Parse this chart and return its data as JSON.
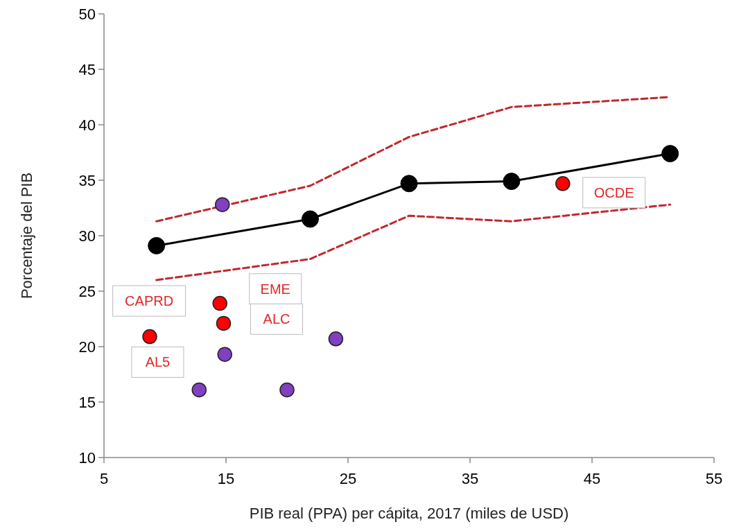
{
  "chart_data": {
    "type": "scatter",
    "xlabel": "PIB real (PPA) per cápita, 2017 (miles de USD)",
    "ylabel": "Porcentaje del PIB",
    "xlim": [
      5,
      55
    ],
    "xticks": [
      5,
      15,
      25,
      35,
      45,
      55
    ],
    "ylim": [
      10,
      50
    ],
    "yticks": [
      10,
      15,
      20,
      25,
      30,
      35,
      40,
      45,
      50
    ],
    "grid": false,
    "series": [
      {
        "type": "line",
        "color": "#c0282d",
        "line_style": "dashed",
        "marker": "none",
        "x": [
          9.3,
          21.9,
          30.0,
          38.4,
          51.4
        ],
        "values": [
          31.3,
          34.5,
          38.9,
          41.6,
          42.5
        ]
      },
      {
        "type": "line",
        "color": "#c0282d",
        "line_style": "dashed",
        "marker": "none",
        "x": [
          9.3,
          21.9,
          30.0,
          38.4,
          51.4
        ],
        "values": [
          26.0,
          27.9,
          31.8,
          31.3,
          32.8
        ]
      },
      {
        "type": "line",
        "color": "#000000",
        "line_style": "solid",
        "marker": "circle",
        "x": [
          9.3,
          21.9,
          30.0,
          38.4,
          51.4
        ],
        "values": [
          29.1,
          31.5,
          34.7,
          34.9,
          37.4
        ]
      },
      {
        "color": "#ff0000",
        "marker": "circle",
        "x": [
          8.75,
          14.5,
          14.8,
          42.6
        ],
        "values": [
          20.9,
          23.9,
          22.1,
          34.7
        ]
      },
      {
        "color": "#8040c0",
        "marker": "circle",
        "x": [
          14.7,
          14.9,
          12.8,
          20.0,
          24.0
        ],
        "values": [
          32.8,
          19.3,
          16.1,
          16.1,
          20.7
        ]
      }
    ],
    "annotations": [
      "CAPRD",
      "EME",
      "ALC",
      "AL5",
      "OCDE"
    ]
  }
}
